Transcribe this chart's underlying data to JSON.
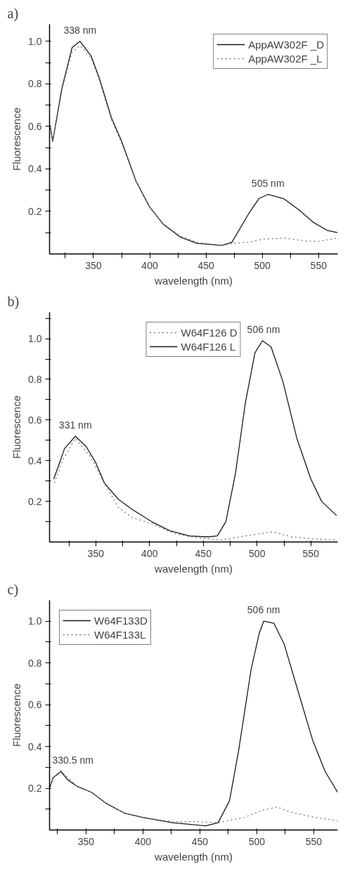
{
  "chart_data": [
    {
      "type": "line",
      "title": "a)",
      "xlabel": "wavelength (nm)",
      "ylabel": "Fluorescence",
      "xlim": [
        311,
        567
      ],
      "ylim": [
        0,
        1.08
      ],
      "xticks": [
        {
          "value": 325,
          "label": null
        },
        350,
        {
          "value": 375,
          "label": null
        },
        400,
        {
          "value": 425,
          "label": null
        },
        450,
        {
          "value": 475,
          "label": null
        },
        500,
        {
          "value": 525,
          "label": null
        },
        550
      ],
      "yticks": [
        {
          "value": 0.1,
          "label": null
        },
        0.2,
        {
          "value": 0.3,
          "label": null
        },
        0.4,
        {
          "value": 0.5,
          "label": null
        },
        0.6,
        {
          "value": 0.7,
          "label": null
        },
        0.8,
        {
          "value": 0.9,
          "label": null
        },
        {
          "value": 1.0,
          "label": "1.0"
        }
      ],
      "legend": "top right",
      "grid": false,
      "annotations": [
        {
          "text": "338 nm",
          "x": 338,
          "y": 1.0
        },
        {
          "text": "505 nm",
          "x": 505,
          "y": 0.28
        }
      ],
      "series": [
        {
          "name": "AppAW302F _D",
          "color": "#1a1a1a",
          "line_style": "solid",
          "x": [
            311.6,
            313.8,
            322,
            331,
            338,
            348,
            355,
            366,
            375,
            388,
            400,
            412,
            427,
            442,
            464,
            473,
            488,
            497,
            505,
            519,
            532,
            545,
            558,
            567
          ],
          "values": [
            0.6,
            0.53,
            0.78,
            0.97,
            1.0,
            0.93,
            0.83,
            0.64,
            0.53,
            0.34,
            0.22,
            0.14,
            0.08,
            0.05,
            0.04,
            0.055,
            0.19,
            0.26,
            0.28,
            0.26,
            0.21,
            0.15,
            0.11,
            0.1
          ]
        },
        {
          "name": "AppAW302F _L",
          "color": "#777777",
          "line_style": "dotted",
          "x": [
            311.6,
            313.8,
            322,
            331,
            338,
            348,
            355,
            366,
            375,
            388,
            400,
            412,
            427,
            442,
            464,
            475,
            488,
            501,
            519,
            540,
            551,
            567
          ],
          "values": [
            0.6,
            0.53,
            0.77,
            0.95,
            0.98,
            0.92,
            0.82,
            0.63,
            0.52,
            0.34,
            0.22,
            0.14,
            0.085,
            0.055,
            0.04,
            0.05,
            0.055,
            0.07,
            0.075,
            0.06,
            0.06,
            0.075
          ]
        }
      ]
    },
    {
      "type": "line",
      "title": "b)",
      "xlabel": "wavelength (nm)",
      "ylabel": "Fluorescence",
      "xlim": [
        307,
        575
      ],
      "ylim": [
        0,
        1.13
      ],
      "xticks": [
        {
          "value": 325,
          "label": null
        },
        350,
        {
          "value": 375,
          "label": null
        },
        400,
        {
          "value": 425,
          "label": null
        },
        450,
        {
          "value": 475,
          "label": null
        },
        500,
        {
          "value": 525,
          "label": null
        },
        550
      ],
      "yticks": [
        {
          "value": 0.1,
          "label": null
        },
        0.2,
        {
          "value": 0.3,
          "label": null
        },
        0.4,
        {
          "value": 0.5,
          "label": null
        },
        0.6,
        {
          "value": 0.7,
          "label": null
        },
        0.8,
        {
          "value": 0.9,
          "label": null
        },
        {
          "value": 1.0,
          "label": "1.0"
        },
        {
          "value": 1.1,
          "label": null
        }
      ],
      "legend": "top",
      "grid": false,
      "annotations": [
        {
          "text": "331 nm",
          "x": 331,
          "y": 0.52
        },
        {
          "text": "506 nm",
          "x": 506,
          "y": 0.99
        }
      ],
      "series": [
        {
          "name": "W64F126 D",
          "color": "#777777",
          "line_style": "dotted",
          "x": [
            311.5,
            319,
            331,
            345,
            358,
            371,
            384,
            402,
            424,
            445,
            467,
            489,
            515,
            532,
            554,
            574
          ],
          "values": [
            0.29,
            0.4,
            0.51,
            0.42,
            0.29,
            0.17,
            0.12,
            0.09,
            0.04,
            0.02,
            0.01,
            0.03,
            0.05,
            0.025,
            0.015,
            0.01
          ]
        },
        {
          "name": "W64F126 L",
          "color": "#1a1a1a",
          "line_style": "solid",
          "x": [
            310.9,
            315,
            321,
            331,
            341,
            350,
            358,
            371,
            384,
            402,
            419,
            437,
            454,
            463,
            471,
            480,
            489,
            498,
            505,
            513,
            524,
            537,
            550,
            560,
            574
          ],
          "values": [
            0.31,
            0.37,
            0.46,
            0.52,
            0.47,
            0.39,
            0.29,
            0.21,
            0.16,
            0.1,
            0.055,
            0.03,
            0.025,
            0.03,
            0.1,
            0.34,
            0.68,
            0.93,
            0.99,
            0.96,
            0.79,
            0.51,
            0.31,
            0.2,
            0.13
          ]
        }
      ]
    },
    {
      "type": "line",
      "title": "c)",
      "xlabel": "wavelength (nm)",
      "ylabel": "Fluorescence",
      "xlim": [
        318,
        571
      ],
      "ylim": [
        0,
        1.1
      ],
      "xticks": [
        {
          "value": 325,
          "label": null
        },
        350,
        {
          "value": 375,
          "label": null
        },
        400,
        {
          "value": 425,
          "label": null
        },
        450,
        {
          "value": 475,
          "label": null
        },
        500,
        {
          "value": 525,
          "label": null
        },
        550
      ],
      "yticks": [
        {
          "value": 0.1,
          "label": null
        },
        0.2,
        {
          "value": 0.3,
          "label": null
        },
        0.4,
        {
          "value": 0.5,
          "label": null
        },
        0.6,
        {
          "value": 0.7,
          "label": null
        },
        0.8,
        {
          "value": 0.9,
          "label": null
        },
        {
          "value": 1.0,
          "label": "1.0"
        }
      ],
      "legend": "top left",
      "grid": false,
      "annotations": [
        {
          "text": "330.5 nm",
          "x": 330.5,
          "y": 0.28
        },
        {
          "text": "506 nm",
          "x": 506,
          "y": 1.0
        }
      ],
      "series": [
        {
          "name": "W64F133D",
          "color": "#1a1a1a",
          "line_style": "solid",
          "x": [
            318,
            321,
            328,
            334,
            342,
            355,
            367,
            384,
            400,
            426,
            455,
            466,
            476,
            484,
            495,
            502,
            506,
            515,
            524,
            537,
            549,
            560,
            571
          ],
          "values": [
            0.2,
            0.25,
            0.28,
            0.24,
            0.21,
            0.18,
            0.13,
            0.08,
            0.06,
            0.035,
            0.02,
            0.035,
            0.14,
            0.38,
            0.77,
            0.94,
            1.0,
            0.99,
            0.89,
            0.65,
            0.43,
            0.28,
            0.18
          ]
        },
        {
          "name": "W64F133L",
          "color": "#777777",
          "line_style": "dotted",
          "x": [
            318,
            321,
            328,
            334,
            342,
            355,
            367,
            384,
            400,
            426,
            447,
            466,
            489,
            505,
            518,
            530,
            551,
            571
          ],
          "values": [
            0.2,
            0.25,
            0.285,
            0.25,
            0.21,
            0.18,
            0.13,
            0.08,
            0.06,
            0.04,
            0.04,
            0.035,
            0.06,
            0.095,
            0.11,
            0.085,
            0.06,
            0.045
          ]
        }
      ]
    }
  ]
}
